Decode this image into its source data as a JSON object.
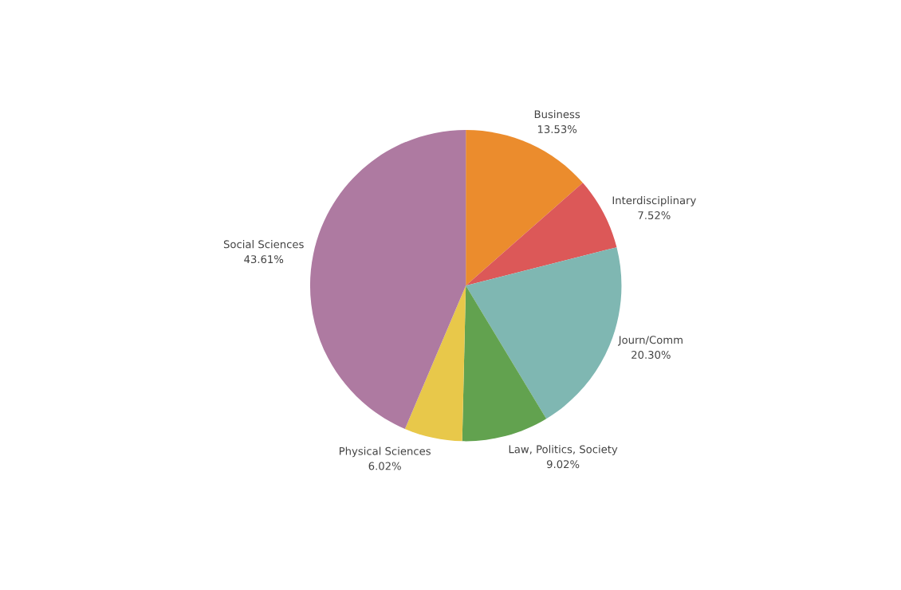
{
  "chart_data": {
    "type": "pie",
    "categories": [
      "Business",
      "Interdisciplinary",
      "Journ/Comm",
      "Law, Politics, Society",
      "Physical Sciences",
      "Social Sciences"
    ],
    "values": [
      13.53,
      7.52,
      20.3,
      9.02,
      6.02,
      43.61
    ],
    "value_labels": [
      "13.53%",
      "7.52%",
      "20.30%",
      "9.02%",
      "6.02%",
      "43.61%"
    ],
    "colors": [
      "#eb8c2d",
      "#dc5858",
      "#7fb7b2",
      "#62a24f",
      "#e8c84a",
      "#ae7aa1"
    ],
    "legend": false
  }
}
